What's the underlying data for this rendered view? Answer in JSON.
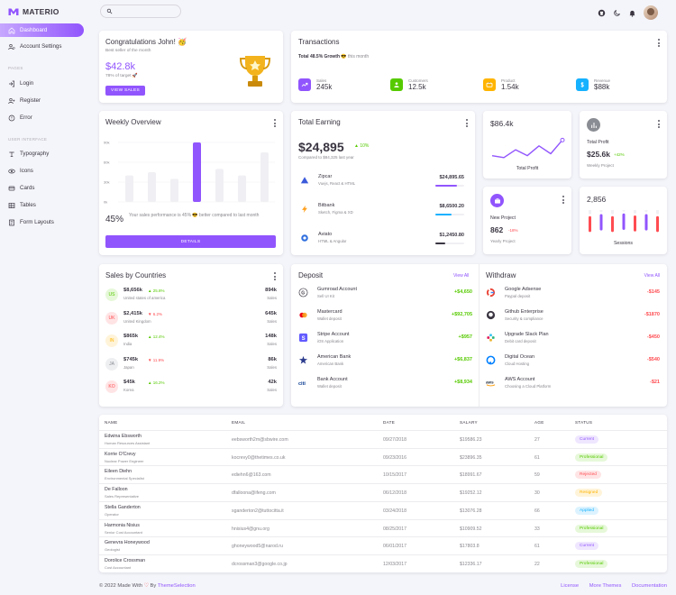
{
  "brand": {
    "name": "MATERIO"
  },
  "nav": {
    "items": [
      {
        "label": "Dashboard",
        "icon": "home-icon"
      },
      {
        "label": "Account Settings",
        "icon": "account-settings-icon"
      },
      {
        "label": "Login",
        "icon": "login-icon"
      },
      {
        "label": "Register",
        "icon": "register-icon"
      },
      {
        "label": "Error",
        "icon": "error-icon"
      },
      {
        "label": "Typography",
        "icon": "typography-icon"
      },
      {
        "label": "Icons",
        "icon": "icons-icon"
      },
      {
        "label": "Cards",
        "icon": "cards-icon"
      },
      {
        "label": "Tables",
        "icon": "tables-icon"
      },
      {
        "label": "Form Layouts",
        "icon": "form-layouts-icon"
      }
    ],
    "sections": [
      "PAGES",
      "USER INTERFACE"
    ]
  },
  "search": {
    "placeholder": ""
  },
  "congrats": {
    "title": "Congratulations John! 🥳",
    "subtitle": "Best seller of the month",
    "amount": "$42.8k",
    "target": "78% of target 🚀",
    "button": "VIEW SALES"
  },
  "transactions": {
    "title": "Transactions",
    "subtitle_bold": "Total 48.5% Growth",
    "subtitle_rest": "😎 this month",
    "stats": [
      {
        "label": "Sales",
        "value": "245k",
        "color": "#9155fd"
      },
      {
        "label": "Customers",
        "value": "12.5k",
        "color": "#56ca00"
      },
      {
        "label": "Product",
        "value": "1.54k",
        "color": "#ffb400"
      },
      {
        "label": "Revenue",
        "value": "$88k",
        "color": "#16b1ff"
      }
    ]
  },
  "weekly": {
    "title": "Weekly Overview",
    "percent": "45%",
    "text": "Your sales performance is 45% 😎 better compared to last month",
    "button": "DETAILS",
    "axis": [
      "90k",
      "60k",
      "30k",
      "0k"
    ],
    "bars": [
      40,
      45,
      35,
      90,
      50,
      40,
      75
    ]
  },
  "earning": {
    "title": "Total Earning",
    "amount": "$24,895",
    "growth": "10%",
    "compare": "Compared to $84,325 last year",
    "items": [
      {
        "name": "Zipcar",
        "desc": "Vuejs, React & HTML",
        "amount": "$24,895.65",
        "progress": 0.75,
        "color": "#9155fd"
      },
      {
        "name": "Bitbank",
        "desc": "Sketch, Figma & XD",
        "amount": "$8,6500.20",
        "progress": 0.55,
        "color": "#16b1ff"
      },
      {
        "name": "Aviato",
        "desc": "HTML & Angular",
        "amount": "$1,2450.80",
        "progress": 0.35,
        "color": "#3a3541"
      }
    ]
  },
  "profit": {
    "value": "$86.4k",
    "label": "Total Profit",
    "points": [
      10,
      11,
      7,
      10,
      5,
      9,
      2
    ]
  },
  "total_profit": {
    "label": "Total Profit",
    "value": "$25.6k",
    "growth": "+42%",
    "sub": "Weekly Project"
  },
  "new_project": {
    "label": "New Project",
    "value": "862",
    "growth": "-18%",
    "sub": "Yearly Project"
  },
  "sessions": {
    "value": "2,856",
    "label": "Sessions",
    "bars": [
      0.55,
      0.7,
      0.55,
      0.75,
      0.6,
      0.7,
      0.55
    ]
  },
  "countries": {
    "title": "Sales by Countries",
    "items": [
      {
        "code": "US",
        "amount": "$8,656k",
        "change": "25.8%",
        "up": true,
        "country": "United states of america",
        "sales": "894k",
        "color": "#56ca00",
        "bg": "#e6f8d9"
      },
      {
        "code": "UK",
        "amount": "$2,415k",
        "change": "6.2%",
        "up": false,
        "country": "United Kingdom",
        "sales": "645k",
        "color": "#ff4c51",
        "bg": "#ffe4e5"
      },
      {
        "code": "IN",
        "amount": "$865k",
        "change": "12.4%",
        "up": true,
        "country": "India",
        "sales": "148k",
        "color": "#ffb400",
        "bg": "#fff4d9"
      },
      {
        "code": "JA",
        "amount": "$745k",
        "change": "11.9%",
        "up": false,
        "country": "Japan",
        "sales": "86k",
        "color": "#8a8d93",
        "bg": "#eeeff1"
      },
      {
        "code": "KO",
        "amount": "$45k",
        "change": "16.2%",
        "up": true,
        "country": "Korea",
        "sales": "42k",
        "color": "#ff4c51",
        "bg": "#ffe4e5"
      }
    ],
    "sales_label": "Sales"
  },
  "deposit": {
    "title": "Deposit",
    "view_all": "View All",
    "items": [
      {
        "name": "Gumroad Account",
        "desc": "Sell UI Kit",
        "amount": "+$4,650"
      },
      {
        "name": "Mastercard",
        "desc": "Wallet deposit",
        "amount": "+$92,705"
      },
      {
        "name": "Stripe Account",
        "desc": "iOS Application",
        "amount": "+$957"
      },
      {
        "name": "American Bank",
        "desc": "American Bank",
        "amount": "+$6,837"
      },
      {
        "name": "Bank Account",
        "desc": "Wallet deposit",
        "amount": "+$8,934"
      }
    ]
  },
  "withdraw": {
    "title": "Withdraw",
    "view_all": "View All",
    "items": [
      {
        "name": "Google Adsense",
        "desc": "Paypal deposit",
        "amount": "-$145"
      },
      {
        "name": "Github Enterprise",
        "desc": "Security & compliance",
        "amount": "-$1870"
      },
      {
        "name": "Upgrade Slack Plan",
        "desc": "Debit card deposit",
        "amount": "-$450"
      },
      {
        "name": "Digital Ocean",
        "desc": "Cloud Hosting",
        "amount": "-$540"
      },
      {
        "name": "AWS Account",
        "desc": "Choosing a Cloud Platform",
        "amount": "-$21"
      }
    ]
  },
  "table": {
    "headers": [
      "NAME",
      "EMAIL",
      "DATE",
      "SALARY",
      "AGE",
      "STATUS"
    ],
    "rows": [
      {
        "name": "Edwina Ebsworth",
        "role": "Human Resources Assistant",
        "email": "eebsworth2m@sbwire.com",
        "date": "09/27/2018",
        "salary": "$19586.23",
        "age": "27",
        "status": "Current"
      },
      {
        "name": "Korrie O'Crevy",
        "role": "Nuclear Power Engineer",
        "email": "kocrevy0@thetimes.co.uk",
        "date": "09/23/2016",
        "salary": "$23896.35",
        "age": "61",
        "status": "Professional"
      },
      {
        "name": "Eileen Diehn",
        "role": "Environmental Specialist",
        "email": "ediehn6@163.com",
        "date": "10/15/2017",
        "salary": "$18991.67",
        "age": "59",
        "status": "Rejected"
      },
      {
        "name": "De Falloon",
        "role": "Sales Representative",
        "email": "dfalloona@ifeng.com",
        "date": "06/12/2018",
        "salary": "$19252.12",
        "age": "30",
        "status": "Resigned"
      },
      {
        "name": "Stella Ganderton",
        "role": "Operator",
        "email": "sganderton2@tuttocitta.it",
        "date": "03/24/2018",
        "salary": "$13076.28",
        "age": "66",
        "status": "Applied"
      },
      {
        "name": "Harmonia Nisius",
        "role": "Senior Cost Accountant",
        "email": "hnisius4@gnu.org",
        "date": "08/25/2017",
        "salary": "$10909.52",
        "age": "33",
        "status": "Professional"
      },
      {
        "name": "Genevra Honeywood",
        "role": "Geologist",
        "email": "ghoneywood5@narod.ru",
        "date": "06/01/2017",
        "salary": "$17803.8",
        "age": "61",
        "status": "Current"
      },
      {
        "name": "Dorolice Crossman",
        "role": "Cost Accountant",
        "email": "dcrossman3@google.co.jp",
        "date": "12/03/2017",
        "salary": "$12336.17",
        "age": "22",
        "status": "Professional"
      }
    ]
  },
  "status_colors": {
    "Current": {
      "fg": "#9155fd",
      "bg": "#efe6ff"
    },
    "Professional": {
      "fg": "#56ca00",
      "bg": "#e6f8d9"
    },
    "Rejected": {
      "fg": "#ff4c51",
      "bg": "#ffe4e5"
    },
    "Resigned": {
      "fg": "#ffb400",
      "bg": "#fff4d9"
    },
    "Applied": {
      "fg": "#16b1ff",
      "bg": "#dcf3ff"
    }
  },
  "footer": {
    "left_prefix": "© 2022 Made With",
    "left_by": "By",
    "left_brand": "ThemeSelection",
    "links": [
      "License",
      "More Themes",
      "Documentation"
    ]
  }
}
